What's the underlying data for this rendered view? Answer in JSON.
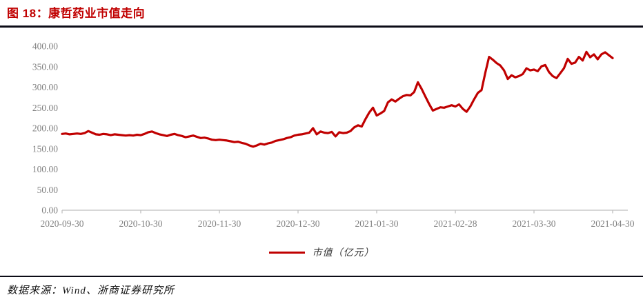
{
  "header": {
    "title": "图 18：康哲药业市值走向"
  },
  "colors": {
    "title": "#C00000",
    "line": "#C00000",
    "axis_label": "#808080",
    "axis_line": "#BFBFBF",
    "rule": "#0B0B16"
  },
  "footer": {
    "source": "数据来源：Wind、浙商证券研究所"
  },
  "chart_data": {
    "type": "line",
    "title": "图 18：康哲药业市值走向",
    "xlabel": "",
    "ylabel": "",
    "ylim": [
      0,
      400
    ],
    "y_tick_step": 50,
    "y_tick_labels": [
      "400.00",
      "350.00",
      "300.00",
      "250.00",
      "200.00",
      "150.00",
      "100.00",
      "50.00",
      "0.00"
    ],
    "x_tick_labels": [
      "2020-09-30",
      "2020-10-30",
      "2020-11-30",
      "2020-12-30",
      "2021-01-30",
      "2021-02-28",
      "2021-03-30",
      "2021-04-30"
    ],
    "x_range": [
      "2020-09-30",
      "2021-04-30"
    ],
    "grid": false,
    "legend_position": "bottom-center",
    "series": [
      {
        "name": "市值（亿元）",
        "color": "#C00000",
        "unit": "亿元",
        "values": [
          186,
          187,
          185,
          186,
          187,
          186,
          188,
          193,
          189,
          185,
          184,
          186,
          185,
          183,
          185,
          184,
          183,
          182,
          183,
          182,
          184,
          183,
          186,
          190,
          192,
          188,
          185,
          183,
          181,
          184,
          186,
          183,
          181,
          178,
          180,
          182,
          179,
          176,
          177,
          175,
          172,
          171,
          172,
          171,
          170,
          168,
          166,
          167,
          164,
          162,
          158,
          155,
          158,
          162,
          160,
          163,
          165,
          169,
          171,
          173,
          176,
          178,
          182,
          184,
          185,
          187,
          189,
          200,
          185,
          192,
          189,
          188,
          191,
          180,
          190,
          188,
          189,
          193,
          202,
          207,
          204,
          222,
          238,
          250,
          231,
          236,
          242,
          263,
          270,
          265,
          272,
          278,
          281,
          280,
          288,
          312,
          296,
          277,
          259,
          243,
          247,
          251,
          250,
          253,
          256,
          253,
          258,
          247,
          240,
          253,
          270,
          286,
          293,
          335,
          374,
          367,
          359,
          353,
          341,
          320,
          329,
          324,
          327,
          332,
          346,
          341,
          343,
          339,
          351,
          354,
          337,
          327,
          322,
          334,
          346,
          369,
          357,
          360,
          374,
          365,
          386,
          373,
          380,
          368,
          380,
          385,
          378,
          371
        ]
      }
    ]
  }
}
